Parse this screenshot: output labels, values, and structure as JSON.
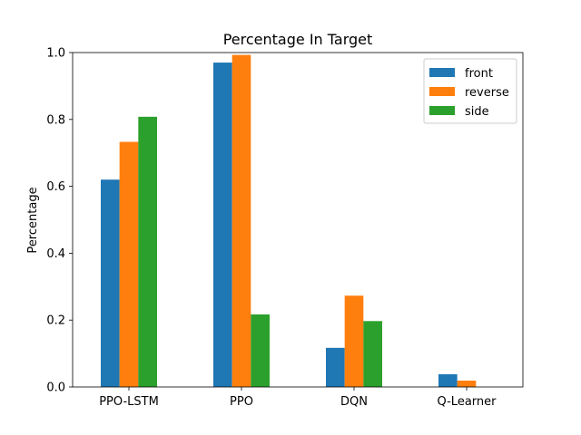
{
  "chart_data": {
    "type": "bar",
    "title": "Percentage In Target",
    "xlabel": "",
    "ylabel": "Percentage",
    "ylim": [
      0,
      1.0
    ],
    "yticks": [
      "0.0",
      "0.2",
      "0.4",
      "0.6",
      "0.8",
      "1.0"
    ],
    "categories": [
      "PPO-LSTM",
      "PPO",
      "DQN",
      "Q-Learner"
    ],
    "series": [
      {
        "name": "front",
        "color": "#1f77b4",
        "values": [
          0.62,
          0.97,
          0.117,
          0.038
        ]
      },
      {
        "name": "reverse",
        "color": "#ff7f0e",
        "values": [
          0.733,
          0.993,
          0.273,
          0.019
        ]
      },
      {
        "name": "side",
        "color": "#2ca02c",
        "values": [
          0.808,
          0.217,
          0.197,
          0.0
        ]
      }
    ],
    "grid": false,
    "legend_position": "top-right"
  }
}
